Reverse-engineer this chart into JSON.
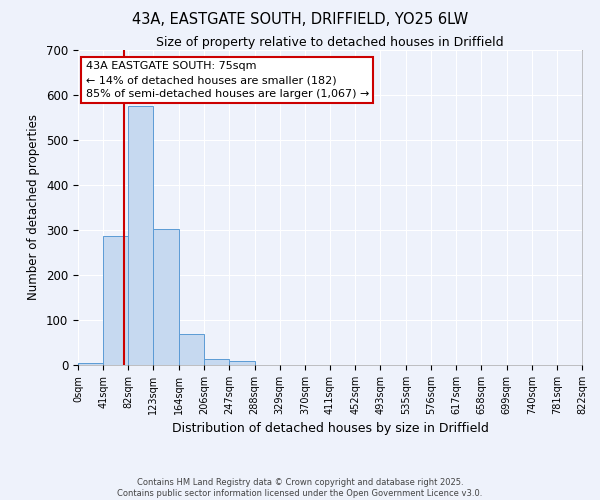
{
  "title": "43A, EASTGATE SOUTH, DRIFFIELD, YO25 6LW",
  "subtitle": "Size of property relative to detached houses in Driffield",
  "xlabel": "Distribution of detached houses by size in Driffield",
  "ylabel": "Number of detached properties",
  "bar_values": [
    5,
    287,
    575,
    302,
    68,
    14,
    8,
    0,
    0,
    0,
    0,
    0,
    0,
    0,
    0,
    0,
    0,
    0,
    0,
    0
  ],
  "bar_edges": [
    0,
    41,
    82,
    123,
    164,
    206,
    247,
    288,
    329,
    370,
    411,
    452,
    493,
    535,
    576,
    617,
    658,
    699,
    740,
    781,
    822
  ],
  "tick_labels": [
    "0sqm",
    "41sqm",
    "82sqm",
    "123sqm",
    "164sqm",
    "206sqm",
    "247sqm",
    "288sqm",
    "329sqm",
    "370sqm",
    "411sqm",
    "452sqm",
    "493sqm",
    "535sqm",
    "576sqm",
    "617sqm",
    "658sqm",
    "699sqm",
    "740sqm",
    "781sqm",
    "822sqm"
  ],
  "property_size": 75,
  "bar_color": "#c6d9f0",
  "bar_edge_color": "#5b9bd5",
  "vline_color": "#cc0000",
  "ylim": [
    0,
    700
  ],
  "yticks": [
    0,
    100,
    200,
    300,
    400,
    500,
    600,
    700
  ],
  "annotation_title": "43A EASTGATE SOUTH: 75sqm",
  "annotation_line1": "← 14% of detached houses are smaller (182)",
  "annotation_line2": "85% of semi-detached houses are larger (1,067) →",
  "annotation_box_color": "#ffffff",
  "annotation_box_edge": "#cc0000",
  "footer_line1": "Contains HM Land Registry data © Crown copyright and database right 2025.",
  "footer_line2": "Contains public sector information licensed under the Open Government Licence v3.0.",
  "bg_color": "#eef2fb",
  "grid_color": "#ffffff"
}
